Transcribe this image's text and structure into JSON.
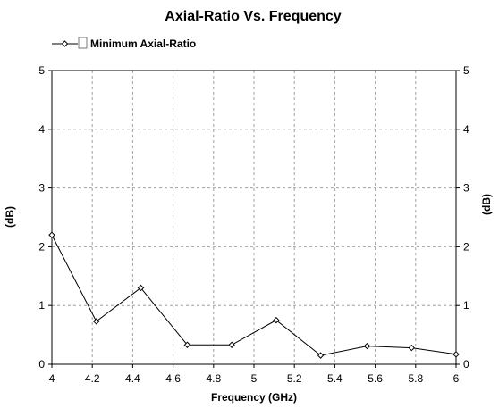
{
  "chart_data": {
    "type": "line",
    "title": "Axial-Ratio Vs. Frequency",
    "xlabel": "Frequency (GHz)",
    "ylabel_left": "(dB)",
    "ylabel_right": "(dB)",
    "xlim": [
      4,
      6
    ],
    "ylim": [
      0,
      5
    ],
    "x_ticks": [
      "4",
      "4.2",
      "4.4",
      "4.6",
      "4.8",
      "5",
      "5.2",
      "5.4",
      "5.6",
      "5.8",
      "6"
    ],
    "y_ticks": [
      "0",
      "1",
      "2",
      "3",
      "4",
      "5"
    ],
    "x_tick_values": [
      4,
      4.2,
      4.4,
      4.6,
      4.8,
      5,
      5.2,
      5.4,
      5.6,
      5.8,
      6
    ],
    "y_tick_values": [
      0,
      1,
      2,
      3,
      4,
      5
    ],
    "grid": true,
    "legend_position": "top-left",
    "series": [
      {
        "name": "Minimum Axial-Ratio",
        "color": "#000000",
        "marker": "diamond",
        "x": [
          4.0,
          4.22,
          4.44,
          4.67,
          4.89,
          5.11,
          5.33,
          5.56,
          5.78,
          6.0
        ],
        "y": [
          2.2,
          0.73,
          1.3,
          0.33,
          0.33,
          0.75,
          0.15,
          0.31,
          0.28,
          0.17
        ]
      }
    ]
  }
}
